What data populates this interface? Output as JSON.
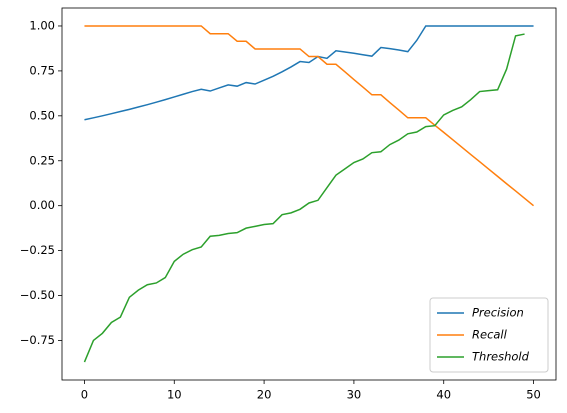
{
  "chart_data": {
    "type": "line",
    "xlim": [
      -2.5,
      52.5
    ],
    "ylim": [
      -0.97,
      1.1
    ],
    "xticks": [
      0,
      10,
      20,
      30,
      40,
      50
    ],
    "yticks": [
      {
        "value": -0.75,
        "label": "−0.75"
      },
      {
        "value": -0.5,
        "label": "−0.50"
      },
      {
        "value": -0.25,
        "label": "−0.25"
      },
      {
        "value": 0,
        "label": "0.00"
      },
      {
        "value": 0.25,
        "label": "0.25"
      },
      {
        "value": 0.5,
        "label": "0.50"
      },
      {
        "value": 0.75,
        "label": "0.75"
      },
      {
        "value": 1,
        "label": "1.00"
      }
    ],
    "legend": "lower right",
    "series": [
      {
        "name": "Precision",
        "color": "#1f77b4",
        "x": [
          0,
          1,
          2,
          3,
          4,
          5,
          6,
          7,
          8,
          9,
          10,
          11,
          12,
          13,
          14,
          15,
          16,
          17,
          18,
          19,
          20,
          21,
          22,
          23,
          24,
          25,
          26,
          27,
          28,
          29,
          30,
          31,
          32,
          33,
          34,
          35,
          36,
          37,
          38,
          39,
          40,
          41,
          42,
          43,
          44,
          45,
          46,
          47,
          48,
          49,
          50
        ],
        "values": [
          0.478,
          0.489,
          0.5,
          0.512,
          0.524,
          0.536,
          0.549,
          0.562,
          0.576,
          0.59,
          0.605,
          0.62,
          0.635,
          0.648,
          0.638,
          0.655,
          0.672,
          0.665,
          0.685,
          0.677,
          0.698,
          0.72,
          0.745,
          0.772,
          0.802,
          0.797,
          0.83,
          0.82,
          0.862,
          0.855,
          0.848,
          0.84,
          0.832,
          0.88,
          0.874,
          0.866,
          0.857,
          0.92,
          1,
          1,
          1,
          1,
          1,
          1,
          1,
          1,
          1,
          1,
          1,
          1,
          1
        ]
      },
      {
        "name": "Recall",
        "color": "#ff7f0e",
        "x": [
          0,
          1,
          2,
          3,
          4,
          5,
          6,
          7,
          8,
          9,
          10,
          11,
          12,
          13,
          14,
          15,
          16,
          17,
          18,
          19,
          20,
          21,
          22,
          23,
          24,
          25,
          26,
          27,
          28,
          29,
          30,
          31,
          32,
          33,
          34,
          35,
          36,
          37,
          38,
          39,
          40,
          41,
          42,
          43,
          44,
          45,
          46,
          47,
          48,
          49,
          50
        ],
        "values": [
          1,
          1,
          1,
          1,
          1,
          1,
          1,
          1,
          1,
          1,
          1,
          1,
          1,
          1,
          0.957,
          0.957,
          0.957,
          0.915,
          0.915,
          0.872,
          0.872,
          0.872,
          0.872,
          0.872,
          0.872,
          0.83,
          0.83,
          0.787,
          0.787,
          0.745,
          0.702,
          0.66,
          0.617,
          0.617,
          0.574,
          0.532,
          0.489,
          0.489,
          0.489,
          0.448,
          0.408,
          0.367,
          0.326,
          0.285,
          0.245,
          0.204,
          0.163,
          0.122,
          0.082,
          0.041,
          0
        ]
      },
      {
        "name": "Threshold",
        "color": "#2ca02c",
        "x": [
          0,
          1,
          2,
          3,
          4,
          5,
          6,
          7,
          8,
          9,
          10,
          11,
          12,
          13,
          14,
          15,
          16,
          17,
          18,
          19,
          20,
          21,
          22,
          23,
          24,
          25,
          26,
          27,
          28,
          29,
          30,
          31,
          32,
          33,
          34,
          35,
          36,
          37,
          38,
          39,
          40,
          41,
          42,
          43,
          44,
          45,
          46,
          47,
          48,
          49
        ],
        "values": [
          -0.87,
          -0.75,
          -0.71,
          -0.65,
          -0.62,
          -0.51,
          -0.47,
          -0.44,
          -0.43,
          -0.4,
          -0.31,
          -0.27,
          -0.245,
          -0.23,
          -0.17,
          -0.165,
          -0.155,
          -0.15,
          -0.125,
          -0.115,
          -0.105,
          -0.1,
          -0.05,
          -0.04,
          -0.02,
          0.015,
          0.03,
          0.1,
          0.17,
          0.205,
          0.24,
          0.26,
          0.295,
          0.3,
          0.34,
          0.365,
          0.4,
          0.41,
          0.44,
          0.445,
          0.505,
          0.53,
          0.55,
          0.59,
          0.635,
          0.64,
          0.645,
          0.76,
          0.945,
          0.955
        ]
      }
    ]
  }
}
